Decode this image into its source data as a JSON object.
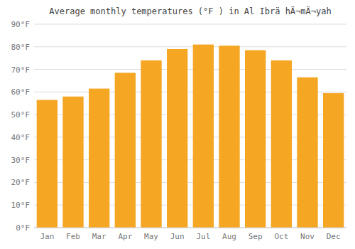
{
  "chart_data": {
    "type": "bar",
    "title": "Average monthly temperatures (°F ) in Al Ibrä hÄ¬mÄ¬yah",
    "categories": [
      "Jan",
      "Feb",
      "Mar",
      "Apr",
      "May",
      "Jun",
      "Jul",
      "Aug",
      "Sep",
      "Oct",
      "Nov",
      "Dec"
    ],
    "values": [
      56.5,
      58.0,
      61.5,
      68.5,
      74.0,
      79.0,
      81.0,
      80.5,
      78.5,
      74.0,
      66.5,
      59.5
    ],
    "color": "#F5A623",
    "ylim": [
      0,
      90
    ],
    "yticks": [
      {
        "value": 0,
        "label": "0°F"
      },
      {
        "value": 10,
        "label": "10°F"
      },
      {
        "value": 20,
        "label": "20°F"
      },
      {
        "value": 30,
        "label": "30°F"
      },
      {
        "value": 40,
        "label": "40°F"
      },
      {
        "value": 50,
        "label": "50°F"
      },
      {
        "value": 60,
        "label": "60°F"
      },
      {
        "value": 70,
        "label": "70°F"
      },
      {
        "value": 80,
        "label": "80°F"
      },
      {
        "value": 90,
        "label": "90°F"
      }
    ],
    "grid": true
  }
}
